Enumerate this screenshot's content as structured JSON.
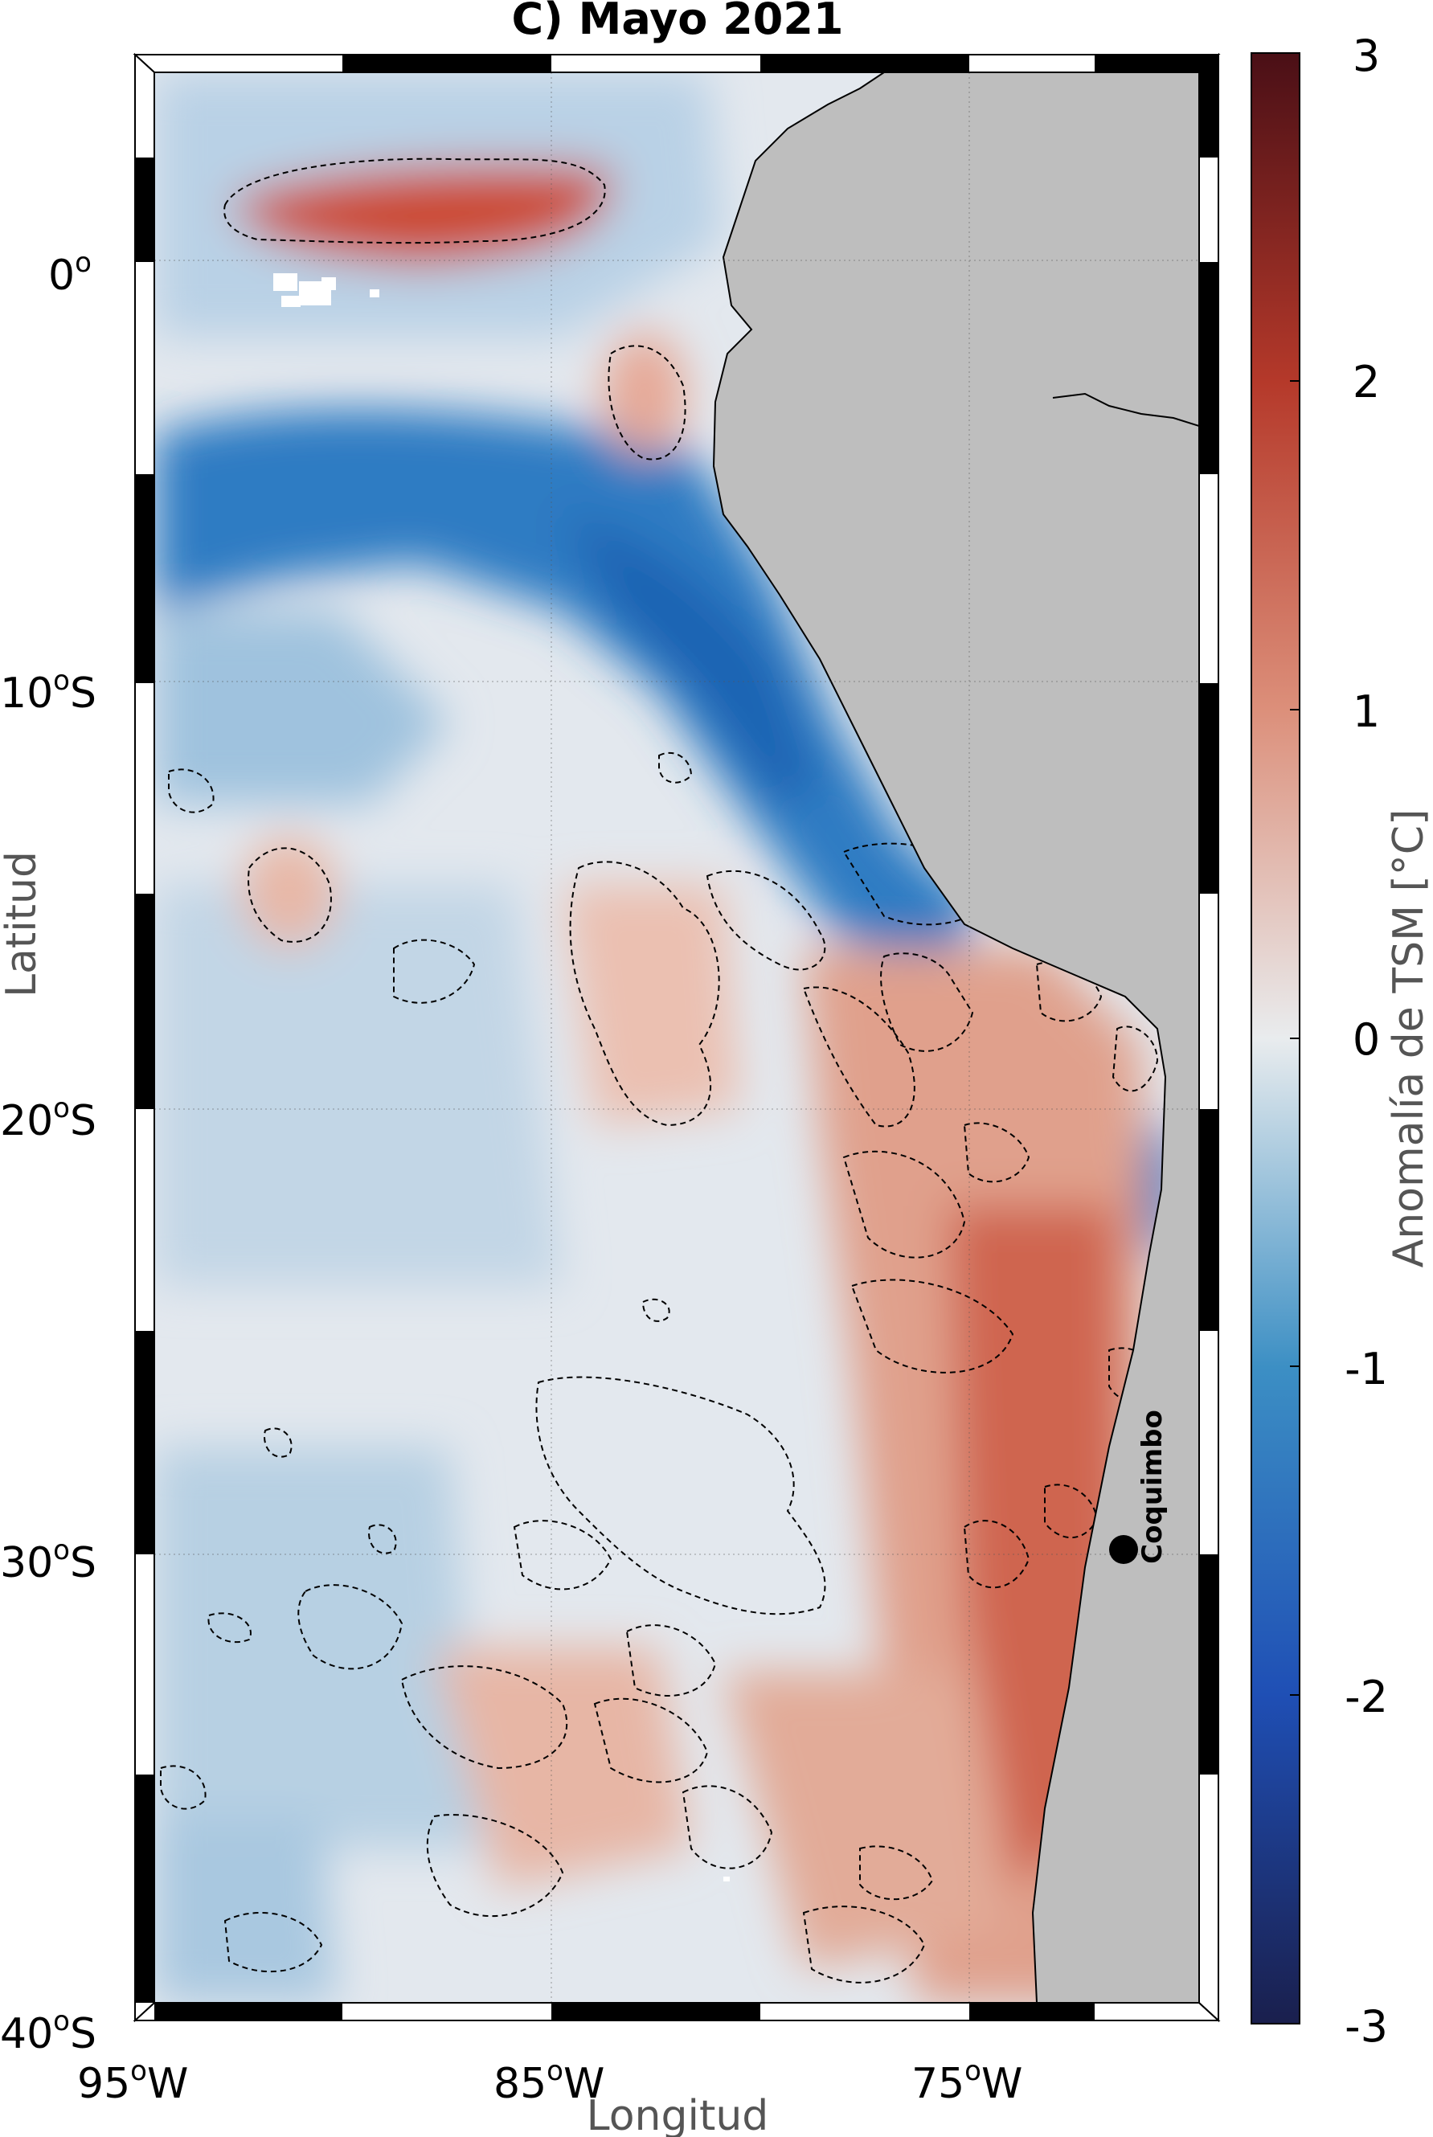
{
  "title": "C) Mayo 2021",
  "axes": {
    "xlabel": "Longitud",
    "ylabel": "Latitud",
    "lon_range": [
      -95,
      -69
    ],
    "lat_range": [
      -40,
      5
    ],
    "grid": true,
    "x_ticks": [
      {
        "value": -95,
        "deg": "95",
        "hemi": "W"
      },
      {
        "value": -85,
        "deg": "85",
        "hemi": "W"
      },
      {
        "value": -75,
        "deg": "75",
        "hemi": "W"
      }
    ],
    "y_ticks": [
      {
        "value": 0,
        "deg": "0",
        "hemi": ""
      },
      {
        "value": -10,
        "deg": "10",
        "hemi": "S"
      },
      {
        "value": -20,
        "deg": "20",
        "hemi": "S"
      },
      {
        "value": -30,
        "deg": "30",
        "hemi": "S"
      },
      {
        "value": -40,
        "deg": "40",
        "hemi": "S"
      }
    ],
    "degree_mark": "o"
  },
  "colorbar": {
    "label": "Anomalía de TSM [°C]",
    "min": -3,
    "max": 3,
    "ticks": [
      "3",
      "2",
      "1",
      "0",
      "-1",
      "-2",
      "-3"
    ],
    "colors": [
      "#1a1f4d",
      "#1f4fb5",
      "#3c8fc4",
      "#e9ecee",
      "#dc8f7a",
      "#b5392a",
      "#4a0f16"
    ]
  },
  "colors": {
    "land": "#bebebe",
    "neutral": "#e6e9ed",
    "cold": "#2b78c0",
    "warm": "#cf5d45",
    "contour": "#000000"
  },
  "location": {
    "name": "Coquimbo",
    "lon": -71.3,
    "lat": -29.95
  }
}
